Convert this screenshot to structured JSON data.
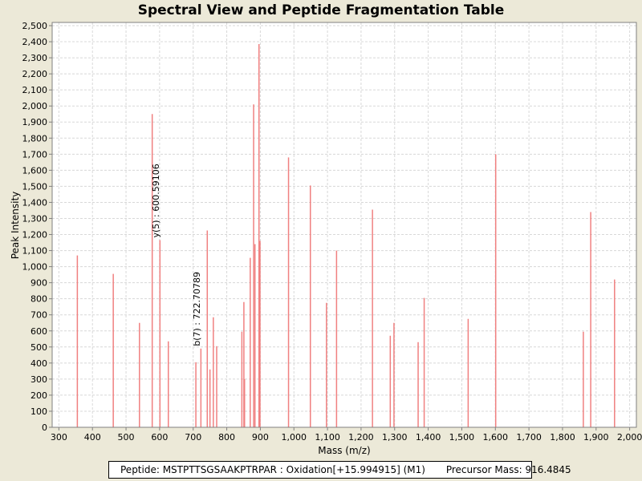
{
  "chart_data": {
    "type": "bar",
    "title": "Spectral View and Peptide Fragmentation Table",
    "xlabel": "Mass (m/z)",
    "ylabel": "Peak Intensity",
    "xlim": [
      280,
      2020
    ],
    "ylim": [
      0,
      2520
    ],
    "x_ticks": [
      300,
      400,
      500,
      600,
      700,
      800,
      900,
      1000,
      1100,
      1200,
      1300,
      1400,
      1500,
      1600,
      1700,
      1800,
      1900,
      2000
    ],
    "x_tick_labels": [
      "300",
      "400",
      "500",
      "600",
      "700",
      "800",
      "900",
      "1,000",
      "1,100",
      "1,200",
      "1,300",
      "1,400",
      "1,500",
      "1,600",
      "1,700",
      "1,800",
      "1,900",
      "2,000"
    ],
    "y_ticks": [
      0,
      100,
      200,
      300,
      400,
      500,
      600,
      700,
      800,
      900,
      1000,
      1100,
      1200,
      1300,
      1400,
      1500,
      1600,
      1700,
      1800,
      1900,
      2000,
      2100,
      2200,
      2300,
      2400,
      2500
    ],
    "y_tick_labels": [
      "0",
      "100",
      "200",
      "300",
      "400",
      "500",
      "600",
      "700",
      "800",
      "900",
      "1,000",
      "1,100",
      "1,200",
      "1,300",
      "1,400",
      "1,500",
      "1,600",
      "1,700",
      "1,800",
      "1,900",
      "2,000",
      "2,100",
      "2,200",
      "2,300",
      "2,400",
      "2,500"
    ],
    "grid": true,
    "bar_color": "#f08080",
    "peaks": [
      {
        "mz": 355,
        "intensity": 1070
      },
      {
        "mz": 462,
        "intensity": 955
      },
      {
        "mz": 540,
        "intensity": 650
      },
      {
        "mz": 578,
        "intensity": 1950
      },
      {
        "mz": 601,
        "intensity": 1165
      },
      {
        "mz": 626,
        "intensity": 535
      },
      {
        "mz": 708,
        "intensity": 405
      },
      {
        "mz": 723,
        "intensity": 490
      },
      {
        "mz": 742,
        "intensity": 1225
      },
      {
        "mz": 750,
        "intensity": 360
      },
      {
        "mz": 760,
        "intensity": 685
      },
      {
        "mz": 770,
        "intensity": 505
      },
      {
        "mz": 845,
        "intensity": 595
      },
      {
        "mz": 851,
        "intensity": 780
      },
      {
        "mz": 853,
        "intensity": 300
      },
      {
        "mz": 870,
        "intensity": 1055
      },
      {
        "mz": 880,
        "intensity": 2010
      },
      {
        "mz": 884,
        "intensity": 1140
      },
      {
        "mz": 896,
        "intensity": 2385
      },
      {
        "mz": 899,
        "intensity": 1160
      },
      {
        "mz": 984,
        "intensity": 1680
      },
      {
        "mz": 1049,
        "intensity": 1505
      },
      {
        "mz": 1097,
        "intensity": 775
      },
      {
        "mz": 1127,
        "intensity": 1100
      },
      {
        "mz": 1234,
        "intensity": 1355
      },
      {
        "mz": 1287,
        "intensity": 570
      },
      {
        "mz": 1298,
        "intensity": 650
      },
      {
        "mz": 1370,
        "intensity": 530
      },
      {
        "mz": 1388,
        "intensity": 805
      },
      {
        "mz": 1519,
        "intensity": 675
      },
      {
        "mz": 1601,
        "intensity": 1700
      },
      {
        "mz": 1862,
        "intensity": 595
      },
      {
        "mz": 1884,
        "intensity": 1340
      },
      {
        "mz": 1955,
        "intensity": 920
      }
    ],
    "annotations": [
      {
        "mz": 600.59106,
        "intensity": 1165,
        "label": "y(5) : 600.59106"
      },
      {
        "mz": 722.70789,
        "intensity": 490,
        "label": "b(7) : 722.70789"
      }
    ]
  },
  "legend": {
    "peptide": "Peptide: MSTPTTSGSAAKPTRPAR : Oxidation[+15.994915] (M1)",
    "precursor": "Precursor Mass: 916.4845"
  }
}
